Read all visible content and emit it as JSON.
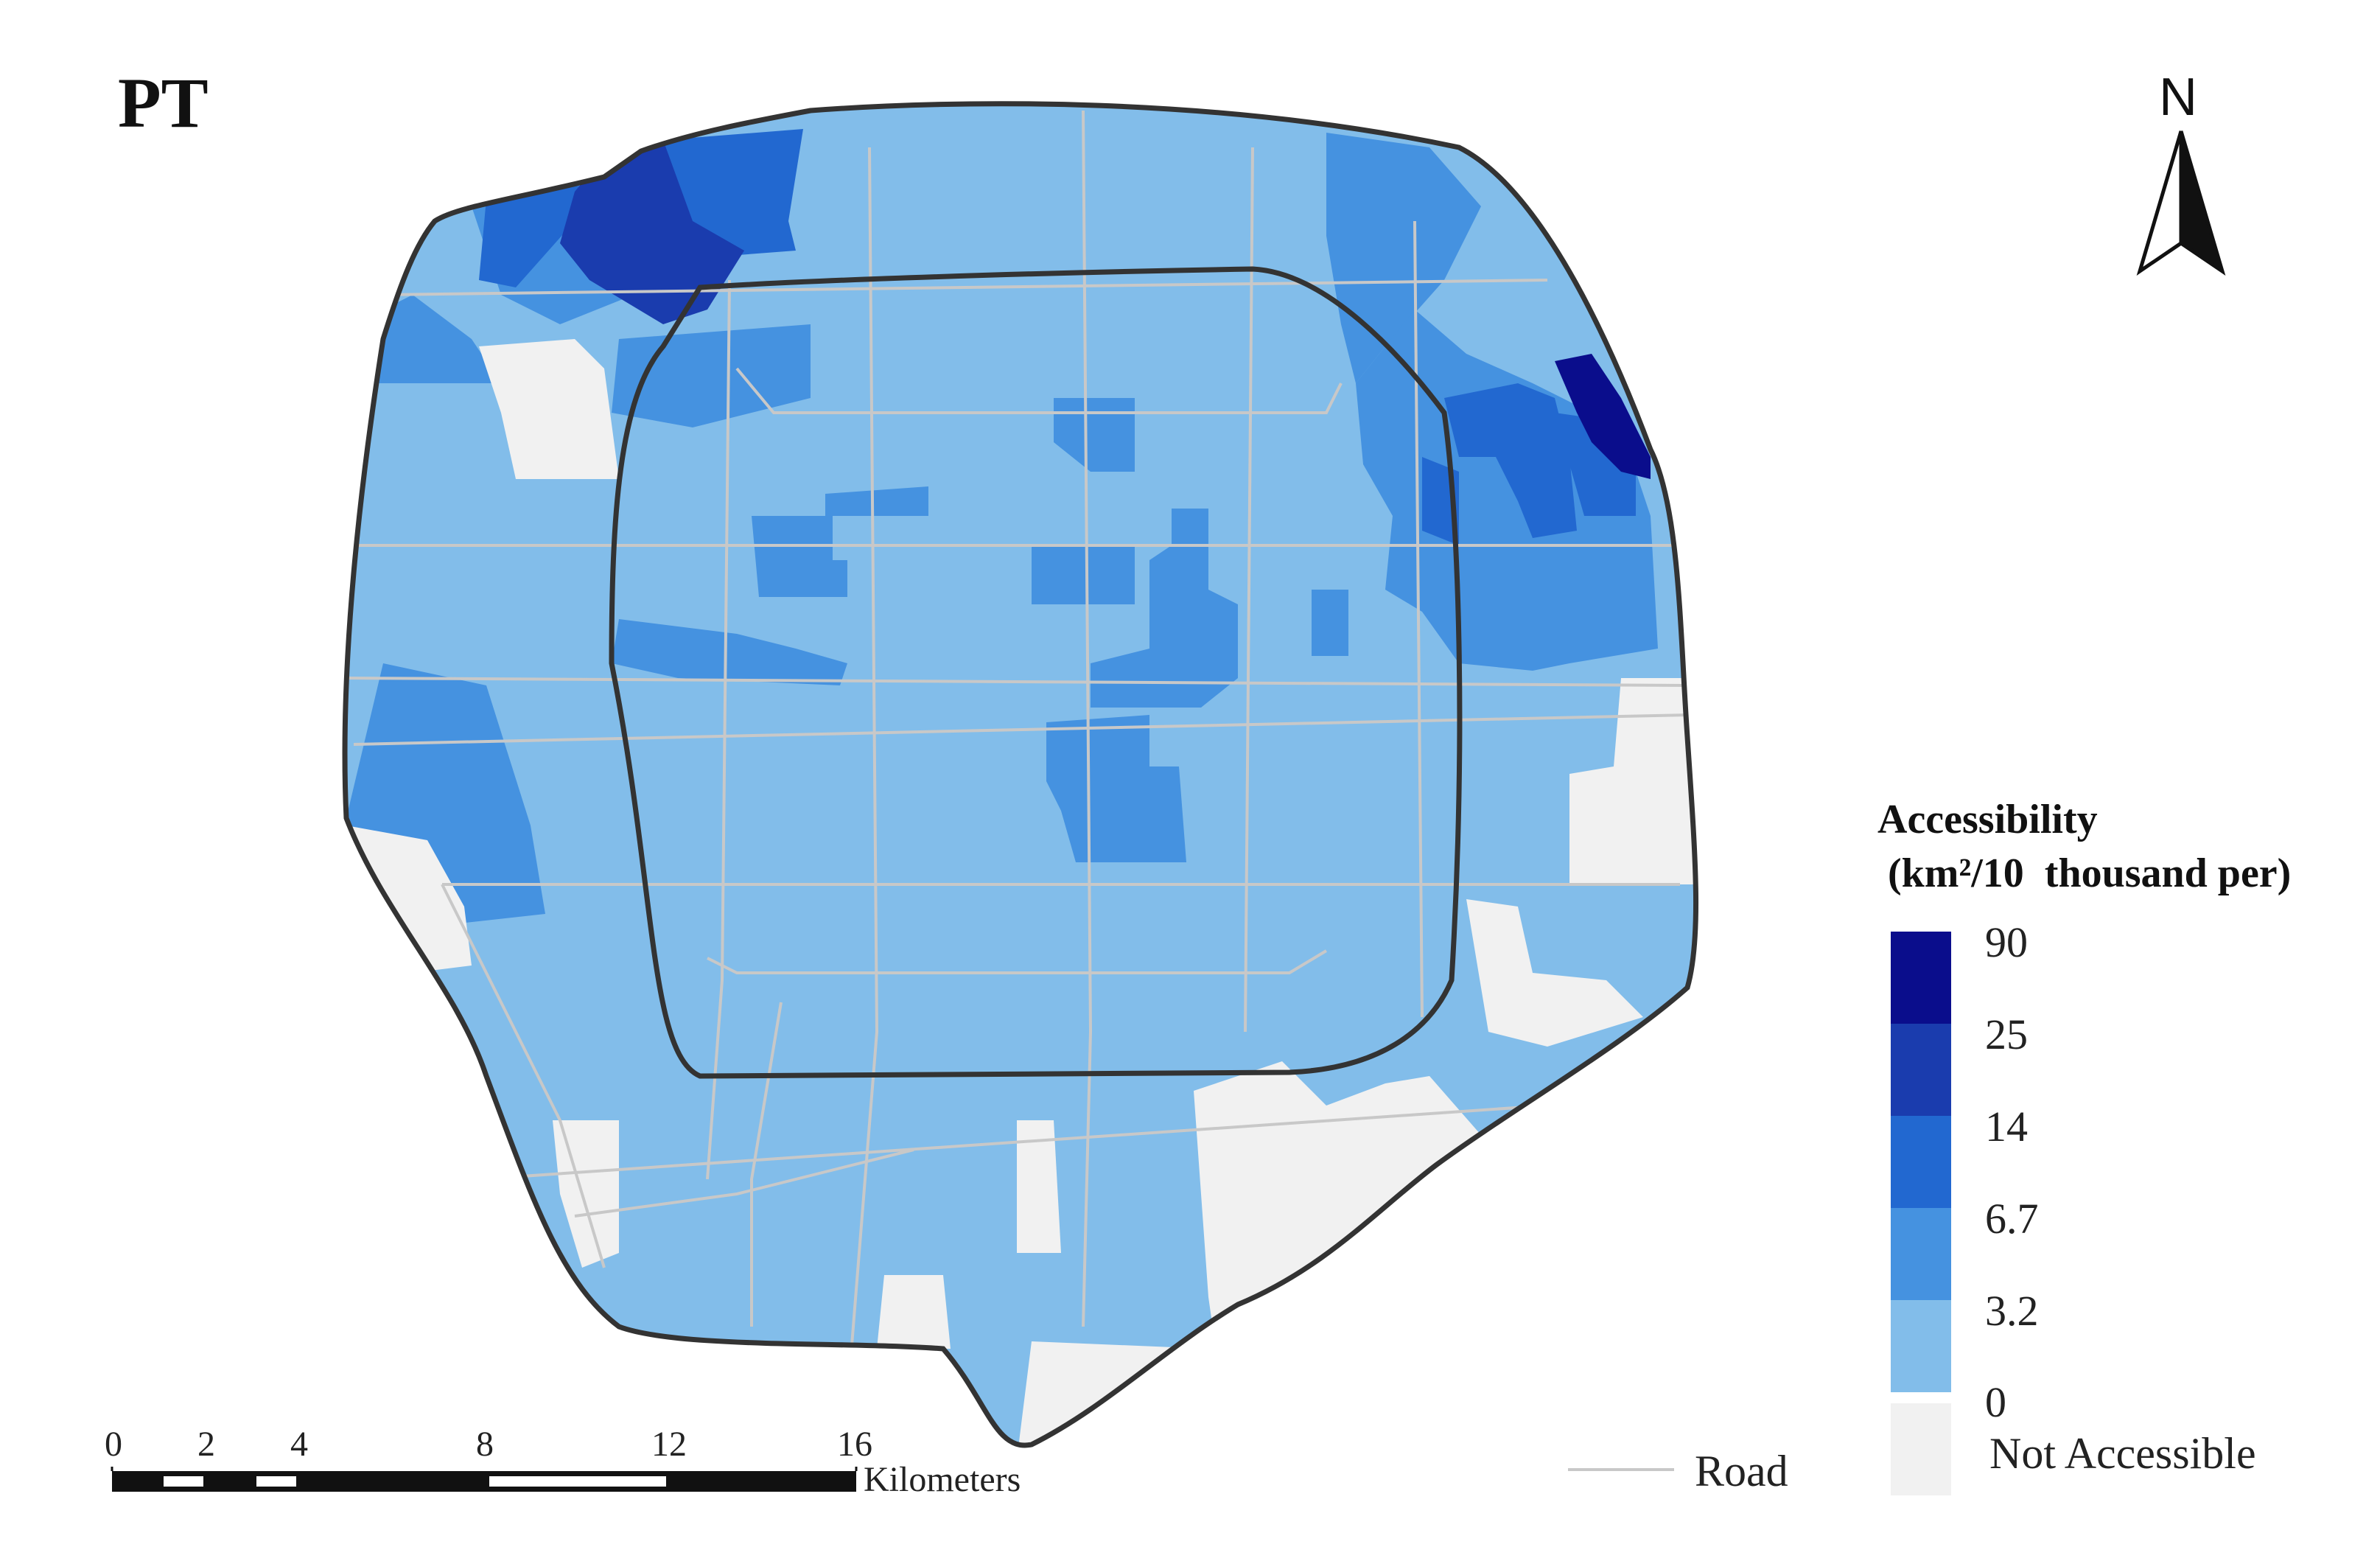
{
  "map": {
    "panel_label": "PT",
    "north_label": "N",
    "icons": [
      "north-arrow-icon",
      "road-line-icon"
    ]
  },
  "legend": {
    "title_line1": "Accessibility",
    "title_line2": " (km²/10  thousand per)",
    "classes": [
      {
        "upper": "90",
        "color": "#0a0d8c"
      },
      {
        "upper": "25",
        "color": "#1a3cae"
      },
      {
        "upper": "14",
        "color": "#2268d0"
      },
      {
        "upper": "6.7",
        "color": "#4592e0"
      },
      {
        "upper": "3.2",
        "color": "#82bdea"
      }
    ],
    "min_label": "0",
    "not_accessible_label": "Not Accessible",
    "not_accessible_color": "#f1f1f1",
    "road_label": "Road",
    "road_color": "#c8c8c8"
  },
  "scale_bar": {
    "ticks": [
      "0",
      "2",
      "4",
      "8",
      "12",
      "16"
    ],
    "unit": "Kilometers"
  }
}
